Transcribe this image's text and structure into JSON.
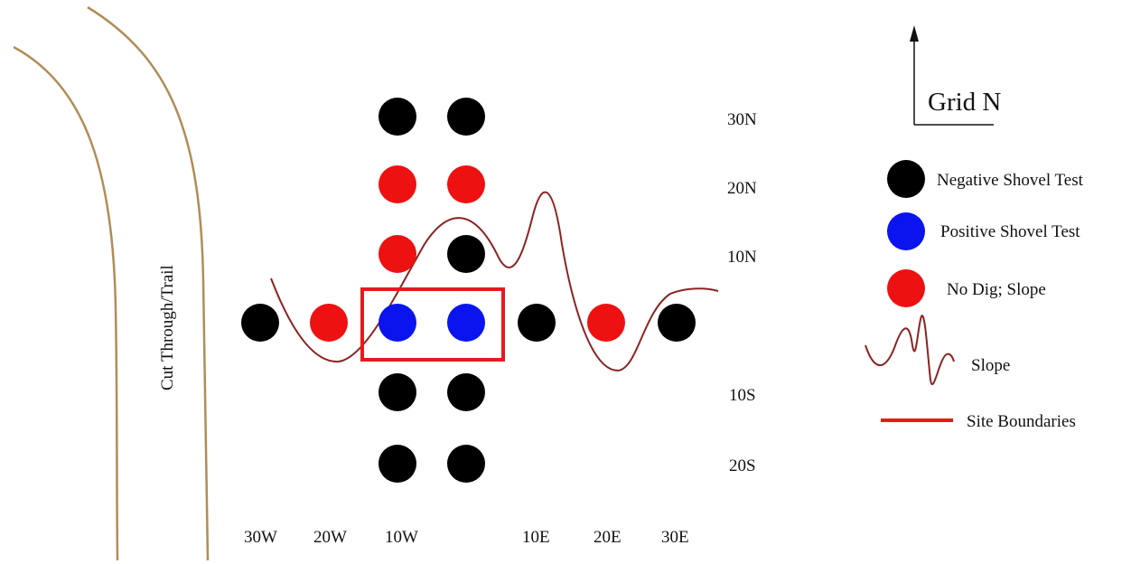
{
  "colors": {
    "negative": "#000000",
    "positive": "#0a14ee",
    "no_dig": "#ee1111",
    "slope_line": "#8b2323",
    "site_boundary": "#e51b1b",
    "trail": "#b08d57"
  },
  "north_arrow": {
    "label": "Grid N",
    "icon": "north-arrow-icon"
  },
  "trail": {
    "label": "Cut Through/Trail"
  },
  "grid": {
    "x_labels": [
      "30W",
      "20W",
      "10W",
      "10E",
      "20E",
      "30E"
    ],
    "y_labels": [
      "30N",
      "20N",
      "10N",
      "10S",
      "20S"
    ]
  },
  "shovel_tests": [
    {
      "col": "10W",
      "row": "30N",
      "status": "negative"
    },
    {
      "col": "5W",
      "row": "30N",
      "status": "negative"
    },
    {
      "col": "10W",
      "row": "20N",
      "status": "no_dig"
    },
    {
      "col": "5W",
      "row": "20N",
      "status": "no_dig"
    },
    {
      "col": "10W",
      "row": "10N",
      "status": "no_dig"
    },
    {
      "col": "5W",
      "row": "10N",
      "status": "negative"
    },
    {
      "col": "30W",
      "row": "0",
      "status": "negative"
    },
    {
      "col": "20W",
      "row": "0",
      "status": "no_dig"
    },
    {
      "col": "10W",
      "row": "0",
      "status": "positive"
    },
    {
      "col": "5W",
      "row": "0",
      "status": "positive"
    },
    {
      "col": "10E",
      "row": "0",
      "status": "negative"
    },
    {
      "col": "20E",
      "row": "0",
      "status": "no_dig"
    },
    {
      "col": "30E",
      "row": "0",
      "status": "negative"
    },
    {
      "col": "10W",
      "row": "10S",
      "status": "negative"
    },
    {
      "col": "5W",
      "row": "10S",
      "status": "negative"
    },
    {
      "col": "10W",
      "row": "20S",
      "status": "negative"
    },
    {
      "col": "5W",
      "row": "20S",
      "status": "negative"
    }
  ],
  "legend": {
    "negative": "Negative Shovel Test",
    "positive": "Positive Shovel Test",
    "no_dig": "No Dig; Slope",
    "slope": "Slope",
    "site_boundary": "Site Boundaries"
  }
}
